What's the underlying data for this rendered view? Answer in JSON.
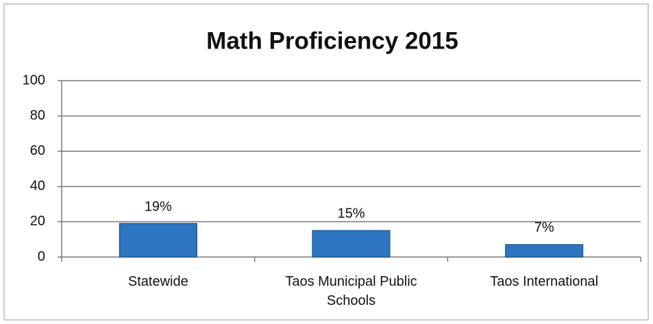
{
  "chart_data": {
    "type": "bar",
    "title": "Math Proficiency 2015",
    "categories": [
      "Statewide",
      "Taos Municipal Public Schools",
      "Taos International"
    ],
    "values": [
      19,
      15,
      7
    ],
    "value_labels": [
      "19%",
      "15%",
      "7%"
    ],
    "color": "#2e75c0",
    "ylim": [
      0,
      100
    ],
    "yticks": [
      0,
      20,
      40,
      60,
      80,
      100
    ],
    "grid": true
  }
}
